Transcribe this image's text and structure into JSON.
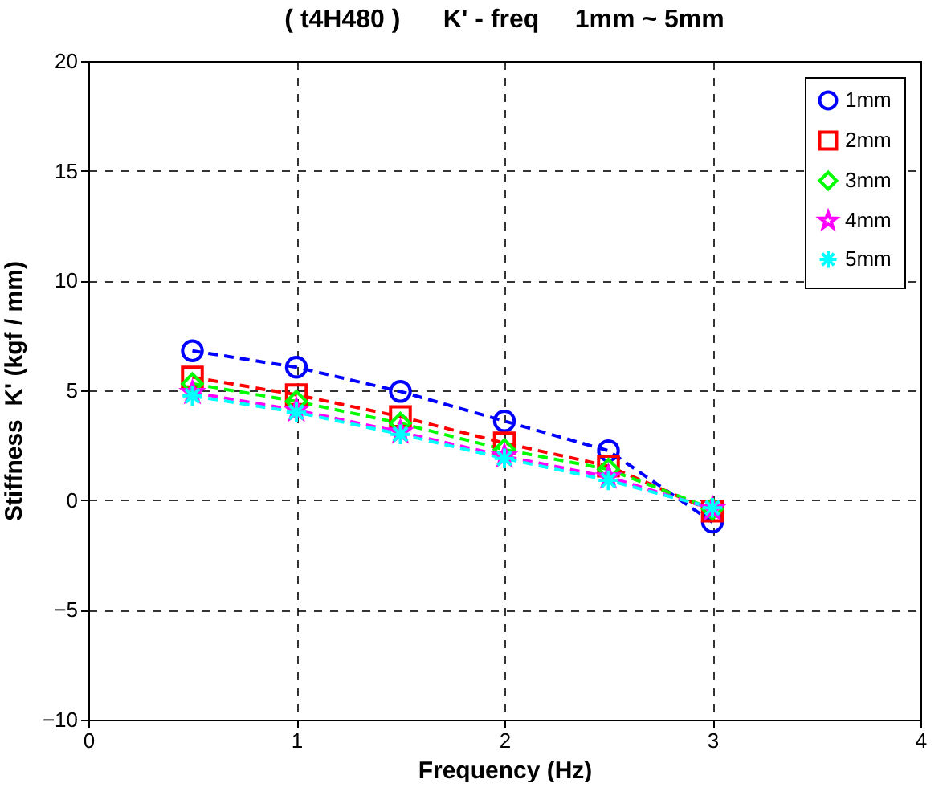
{
  "chart_data": {
    "type": "line",
    "title": "( t4H480 )      K' - freq     1mm ~ 5mm",
    "xlabel": "Frequency (Hz)",
    "ylabel": "Stiffness  K' (kgf / mm)",
    "x": [
      0.5,
      1,
      1.5,
      2,
      2.5,
      3
    ],
    "xlim": [
      0,
      4
    ],
    "xticks": [
      0,
      1,
      2,
      3,
      4
    ],
    "ylim": [
      -10,
      20
    ],
    "yticks": [
      -10,
      -5,
      0,
      5,
      10,
      15,
      20
    ],
    "grid": true,
    "legend": "top right",
    "line_style": "dashed",
    "series": [
      {
        "name": "1mm",
        "color": "#0000ff",
        "marker": "circle",
        "values": [
          6.8,
          6.05,
          4.95,
          3.6,
          2.25,
          -1.0
        ]
      },
      {
        "name": "2mm",
        "color": "#ff0000",
        "marker": "square",
        "values": [
          5.6,
          4.8,
          3.8,
          2.6,
          1.55,
          -0.5
        ]
      },
      {
        "name": "3mm",
        "color": "#00ff00",
        "marker": "diamond",
        "values": [
          5.3,
          4.5,
          3.5,
          2.3,
          1.4,
          -0.4
        ]
      },
      {
        "name": "4mm",
        "color": "#ff00ff",
        "marker": "star",
        "values": [
          4.9,
          4.1,
          3.1,
          2.0,
          1.05,
          -0.4
        ]
      },
      {
        "name": "5mm",
        "color": "#00ffff",
        "marker": "cross",
        "values": [
          4.75,
          4.0,
          3.0,
          1.9,
          0.9,
          -0.35
        ]
      }
    ]
  }
}
